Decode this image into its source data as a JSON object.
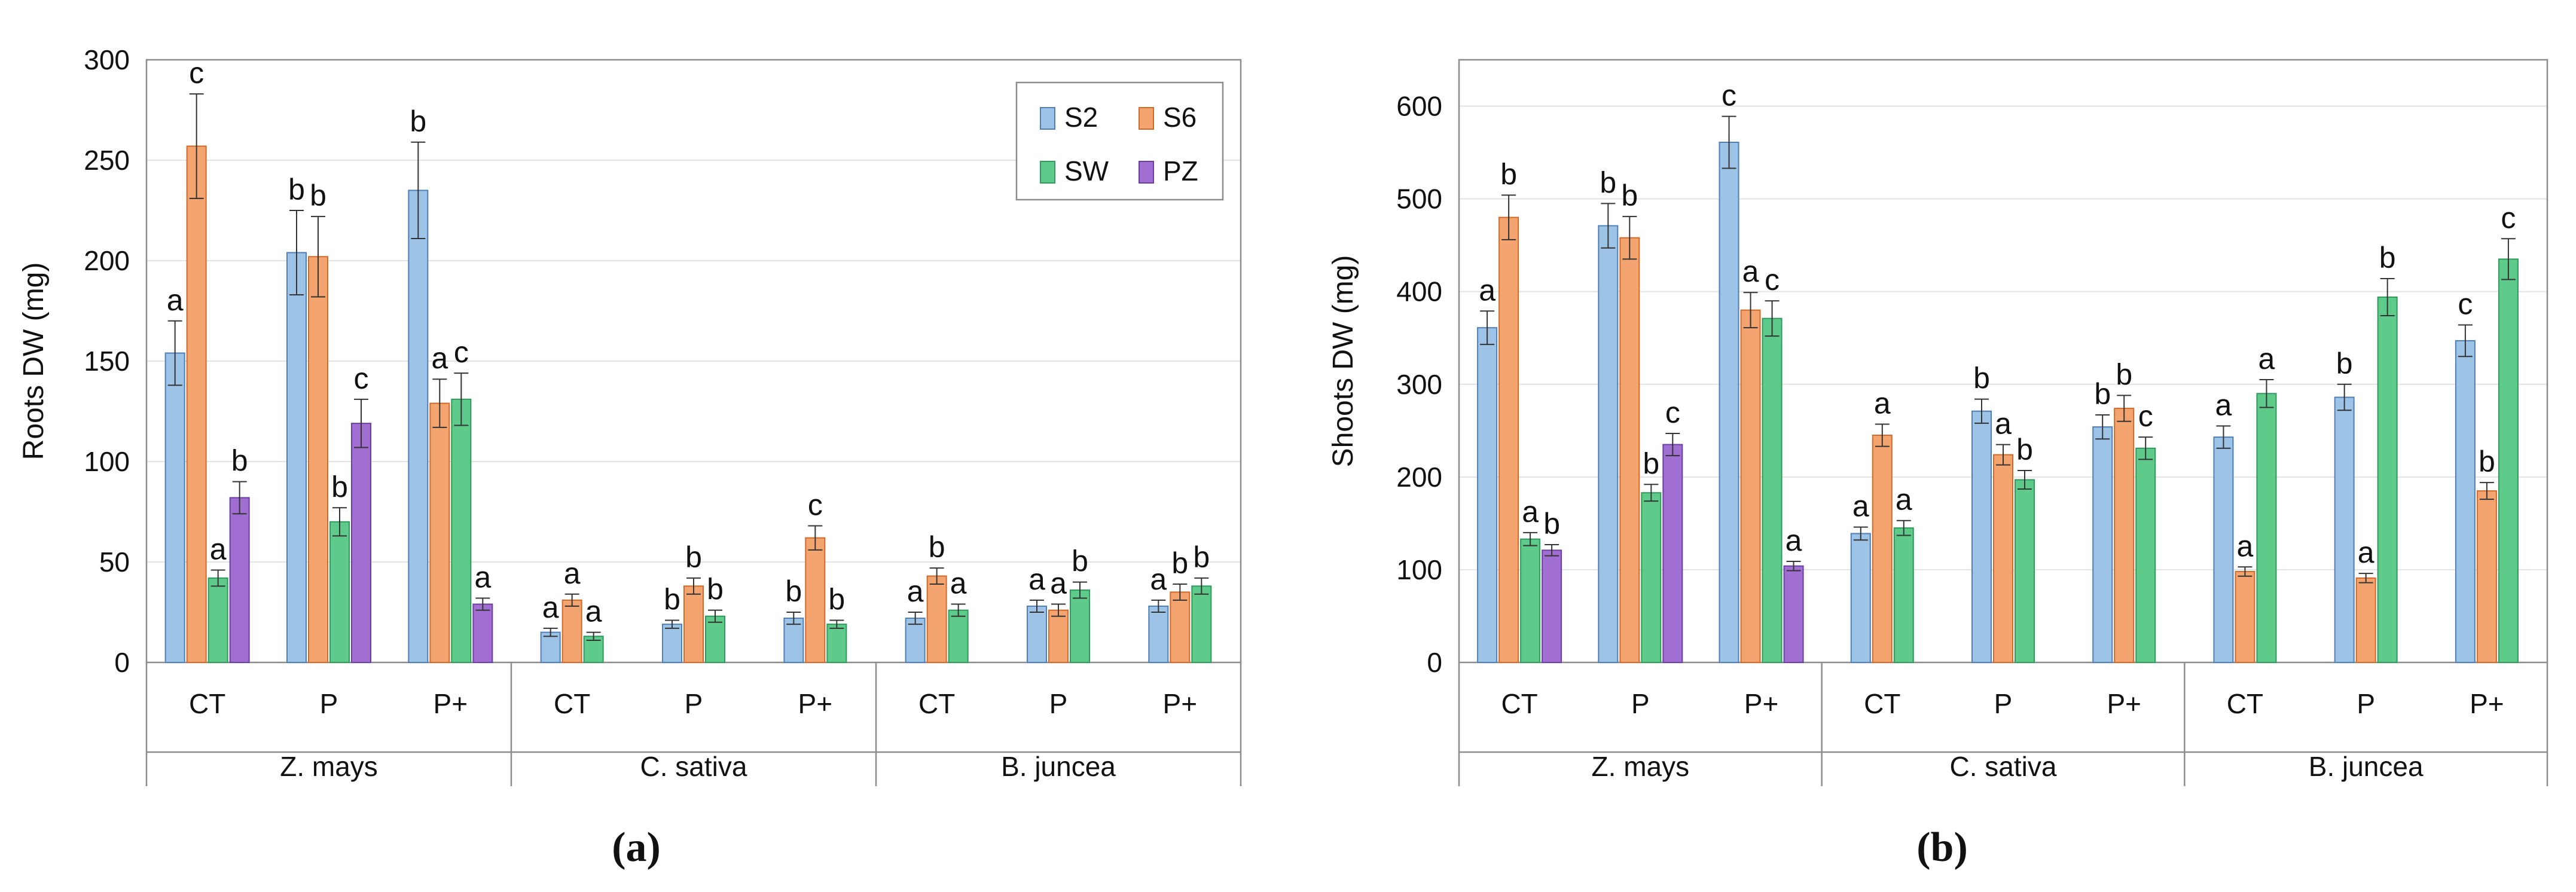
{
  "series": [
    {
      "name": "S2",
      "color": "#9dc3e6",
      "stroke": "#4f7fb5"
    },
    {
      "name": "S6",
      "color": "#f4a46f",
      "stroke": "#d06a2a"
    },
    {
      "name": "SW",
      "color": "#5ecb8a",
      "stroke": "#2f9a5c"
    },
    {
      "name": "PZ",
      "color": "#a16ed2",
      "stroke": "#6a3fa0"
    }
  ],
  "chart_data": [
    {
      "type": "bar",
      "panel": "(a)",
      "ylabel": "Roots DW (mg)",
      "ylim": [
        0,
        300
      ],
      "yticks": [
        0,
        50,
        100,
        150,
        200,
        250,
        300
      ],
      "grid": true,
      "legend": "top-right",
      "categories": [
        "CT",
        "P",
        "P+",
        "CT",
        "P",
        "P+",
        "CT",
        "P",
        "P+"
      ],
      "groups": [
        {
          "label": "Z. mays",
          "categories": [
            "CT",
            "P",
            "P+"
          ]
        },
        {
          "label": "C. sativa",
          "categories": [
            "CT",
            "P",
            "P+"
          ]
        },
        {
          "label": "B. juncea",
          "categories": [
            "CT",
            "P",
            "P+"
          ]
        }
      ],
      "series": [
        {
          "name": "S2",
          "values": [
            154,
            204,
            235,
            15,
            19,
            22,
            22,
            28,
            28
          ],
          "errors": [
            16,
            21,
            24,
            2,
            2,
            3,
            3,
            3,
            3
          ],
          "letters": [
            "a",
            "b",
            "b",
            "a",
            "b",
            "b",
            "a",
            "a",
            "a"
          ]
        },
        {
          "name": "S6",
          "values": [
            257,
            202,
            129,
            31,
            38,
            62,
            43,
            26,
            35
          ],
          "errors": [
            26,
            20,
            12,
            3,
            4,
            6,
            4,
            3,
            4
          ],
          "letters": [
            "c",
            "b",
            "a",
            "a",
            "b",
            "c",
            "b",
            "a",
            "b"
          ]
        },
        {
          "name": "SW",
          "values": [
            42,
            70,
            131,
            13,
            23,
            19,
            26,
            36,
            38
          ],
          "errors": [
            4,
            7,
            13,
            2,
            3,
            2,
            3,
            4,
            4
          ],
          "letters": [
            "a",
            "b",
            "c",
            "a",
            "b",
            "b",
            "a",
            "b",
            "b"
          ]
        },
        {
          "name": "PZ",
          "values": [
            82,
            119,
            29,
            null,
            null,
            null,
            null,
            null,
            null
          ],
          "errors": [
            8,
            12,
            3,
            null,
            null,
            null,
            null,
            null,
            null
          ],
          "letters": [
            "b",
            "c",
            "a",
            null,
            null,
            null,
            null,
            null,
            null
          ]
        }
      ]
    },
    {
      "type": "bar",
      "panel": "(b)",
      "ylabel": "Shoots DW (mg)",
      "ylim": [
        0,
        650
      ],
      "yticks": [
        0,
        100,
        200,
        300,
        400,
        500,
        600
      ],
      "grid": true,
      "legend": "none",
      "categories": [
        "CT",
        "P",
        "P+",
        "CT",
        "P",
        "P+",
        "CT",
        "P",
        "P+"
      ],
      "groups": [
        {
          "label": "Z. mays",
          "categories": [
            "CT",
            "P",
            "P+"
          ]
        },
        {
          "label": "C. sativa",
          "categories": [
            "CT",
            "P",
            "P+"
          ]
        },
        {
          "label": "B. juncea",
          "categories": [
            "CT",
            "P",
            "P+"
          ]
        }
      ],
      "series": [
        {
          "name": "S2",
          "values": [
            361,
            471,
            561,
            139,
            271,
            254,
            243,
            286,
            347
          ],
          "errors": [
            18,
            24,
            28,
            7,
            13,
            13,
            12,
            14,
            17
          ],
          "letters": [
            "a",
            "b",
            "c",
            "a",
            "b",
            "b",
            "a",
            "b",
            "c"
          ]
        },
        {
          "name": "S6",
          "values": [
            480,
            458,
            380,
            245,
            224,
            274,
            98,
            91,
            185
          ],
          "errors": [
            24,
            23,
            19,
            12,
            11,
            14,
            5,
            5,
            9
          ],
          "letters": [
            "b",
            "b",
            "a",
            "a",
            "a",
            "b",
            "a",
            "a",
            "b"
          ]
        },
        {
          "name": "SW",
          "values": [
            133,
            183,
            371,
            145,
            197,
            231,
            290,
            394,
            435
          ],
          "errors": [
            7,
            9,
            19,
            8,
            10,
            12,
            15,
            20,
            22
          ],
          "letters": [
            "a",
            "b",
            "c",
            "a",
            "b",
            "c",
            "a",
            "b",
            "c"
          ]
        },
        {
          "name": "PZ",
          "values": [
            121,
            235,
            104,
            null,
            null,
            null,
            null,
            null,
            null
          ],
          "errors": [
            6,
            12,
            5,
            null,
            null,
            null,
            null,
            null,
            null
          ],
          "letters": [
            "b",
            "c",
            "a",
            null,
            null,
            null,
            null,
            null,
            null
          ]
        }
      ]
    }
  ]
}
